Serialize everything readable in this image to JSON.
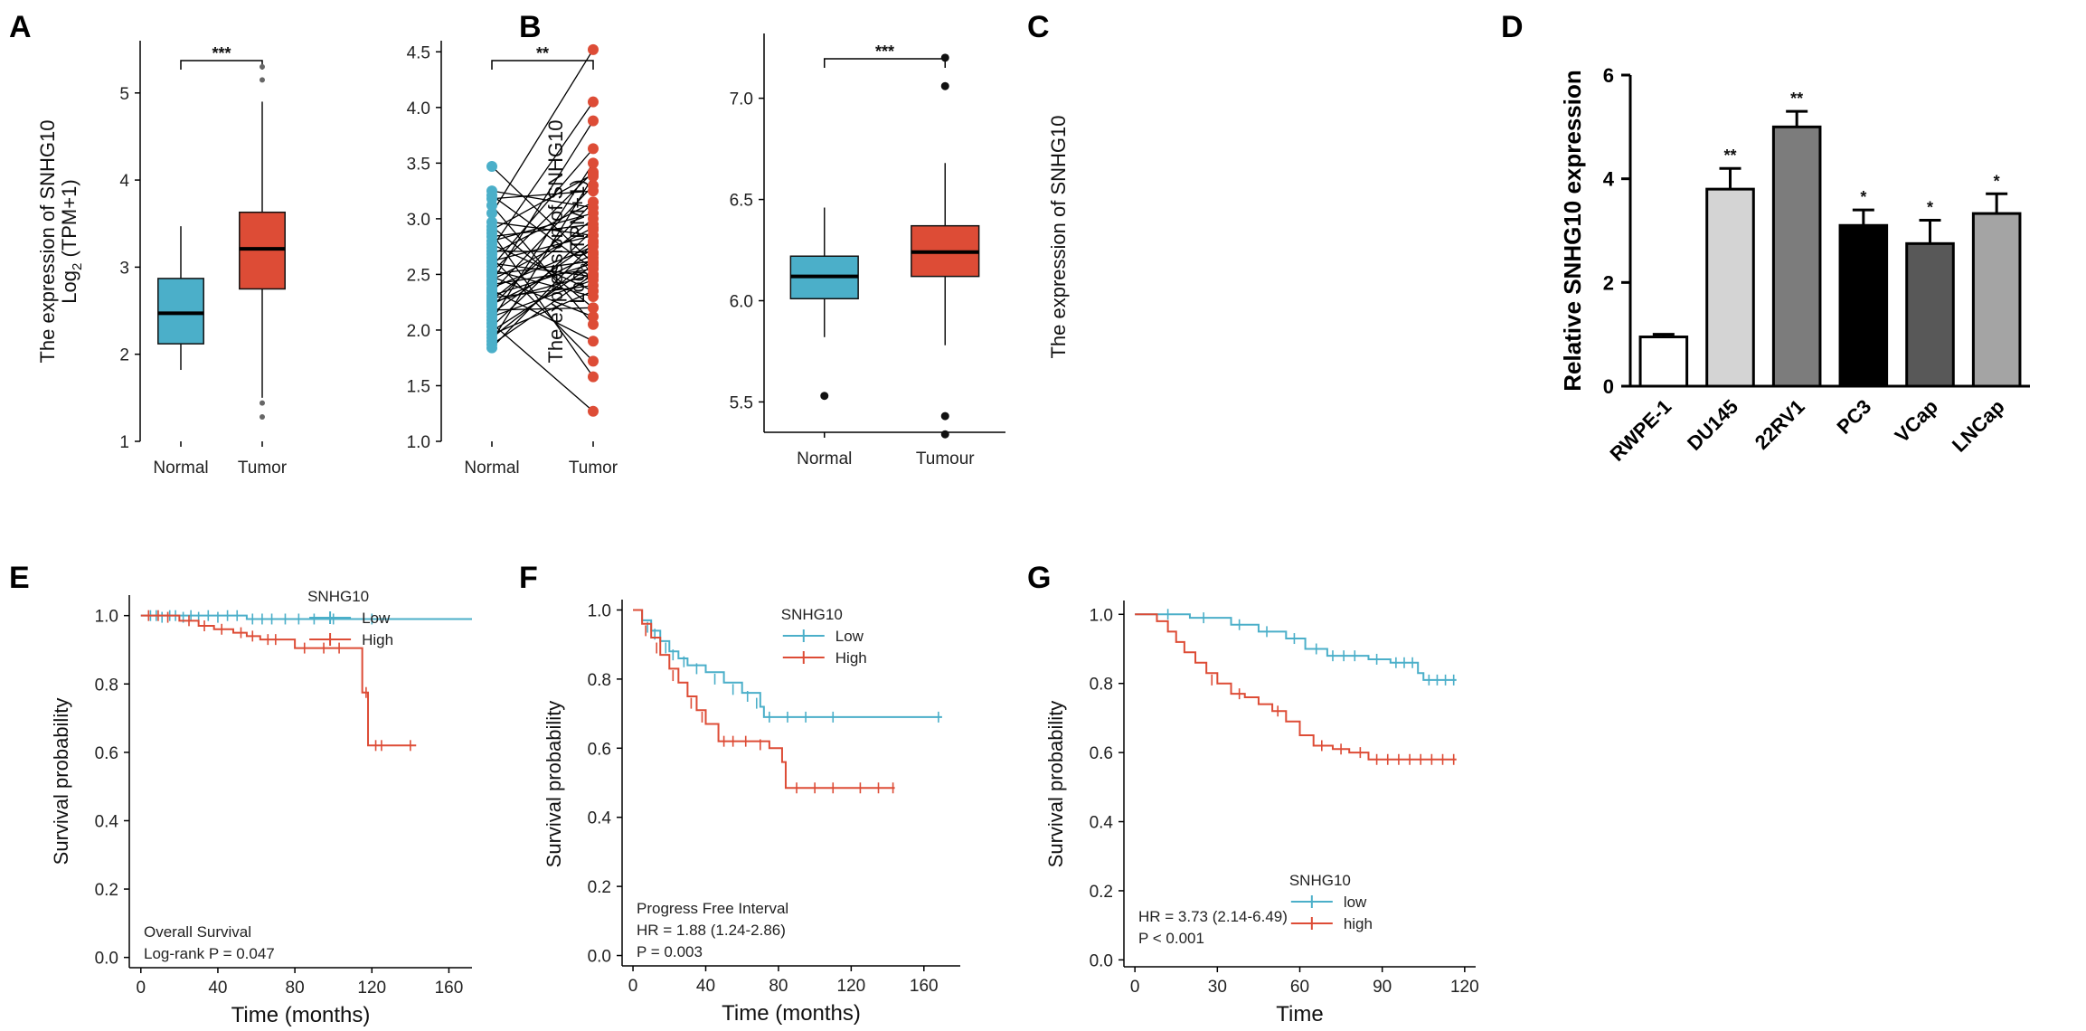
{
  "colors": {
    "normal": "#4bafc9",
    "tumor": "#dd4c36",
    "black": "#000000",
    "gray": "#666666"
  },
  "chart_data": [
    {
      "id": "A",
      "letter": "A",
      "type": "box",
      "ylabel_line1": "The expression of SNHG10",
      "ylabel_line2_pre": "Log",
      "ylabel_line2_sub": "2",
      "ylabel_line2_post": " (TPM+1)",
      "ylim": [
        1,
        5.6
      ],
      "yticks": [
        "1",
        "2",
        "3",
        "4",
        "5"
      ],
      "significance": "***",
      "groups": [
        {
          "name": "Normal",
          "color": "#4bafc9",
          "min": 1.82,
          "q1": 2.12,
          "median": 2.47,
          "q3": 2.87,
          "max": 3.47,
          "outliers": []
        },
        {
          "name": "Tumor",
          "color": "#dd4c36",
          "min": 1.5,
          "q1": 2.75,
          "median": 3.21,
          "q3": 3.63,
          "max": 4.9,
          "outliers": [
            1.28,
            1.44,
            5.15,
            5.3
          ]
        }
      ]
    },
    {
      "id": "B",
      "letter": "B",
      "type": "paired",
      "ylabel_line1": "The expression of SNHG10",
      "ylabel_line2_pre": "Log",
      "ylabel_line2_sub": "2",
      "ylabel_line2_post": " (TPM+1)",
      "ylim": [
        1.0,
        4.6
      ],
      "yticks": [
        "1.0",
        "1.5",
        "2.0",
        "2.5",
        "3.0",
        "3.5",
        "4.0",
        "4.5"
      ],
      "significance": "**",
      "groups": [
        {
          "name": "Normal",
          "color": "#4bafc9"
        },
        {
          "name": "Tumor",
          "color": "#dd4c36"
        }
      ],
      "pairs": [
        [
          3.47,
          2.6
        ],
        [
          3.25,
          3.1
        ],
        [
          3.21,
          2.55
        ],
        [
          3.18,
          3.25
        ],
        [
          3.12,
          2.05
        ],
        [
          3.05,
          4.52
        ],
        [
          2.97,
          2.85
        ],
        [
          2.93,
          2.2
        ],
        [
          2.9,
          3.4
        ],
        [
          2.87,
          1.58
        ],
        [
          2.84,
          2.95
        ],
        [
          2.8,
          3.05
        ],
        [
          2.77,
          2.35
        ],
        [
          2.74,
          4.05
        ],
        [
          2.71,
          2.7
        ],
        [
          2.68,
          3.15
        ],
        [
          2.65,
          1.72
        ],
        [
          2.62,
          2.85
        ],
        [
          2.6,
          2.48
        ],
        [
          2.57,
          3.63
        ],
        [
          2.54,
          2.3
        ],
        [
          2.52,
          3.42
        ],
        [
          2.5,
          2.62
        ],
        [
          2.48,
          2.12
        ],
        [
          2.45,
          2.92
        ],
        [
          2.43,
          3.88
        ],
        [
          2.41,
          2.55
        ],
        [
          2.38,
          2.75
        ],
        [
          2.36,
          1.9
        ],
        [
          2.34,
          3.3
        ],
        [
          2.31,
          2.6
        ],
        [
          2.29,
          2.4
        ],
        [
          2.27,
          3.0
        ],
        [
          2.25,
          2.5
        ],
        [
          2.23,
          2.68
        ],
        [
          2.21,
          3.15
        ],
        [
          2.18,
          2.2
        ],
        [
          2.15,
          2.8
        ],
        [
          2.12,
          2.45
        ],
        [
          2.09,
          3.5
        ],
        [
          2.06,
          1.27
        ],
        [
          2.03,
          2.9
        ],
        [
          1.99,
          2.58
        ],
        [
          1.96,
          2.35
        ],
        [
          1.93,
          2.65
        ],
        [
          1.9,
          3.38
        ],
        [
          1.87,
          2.5
        ],
        [
          1.84,
          2.78
        ]
      ]
    },
    {
      "id": "C",
      "letter": "C",
      "type": "box",
      "ylabel_line1": "The expression of SNHG10",
      "ylim": [
        5.35,
        7.32
      ],
      "yticks": [
        "5.5",
        "6.0",
        "6.5",
        "7.0"
      ],
      "significance": "***",
      "groups": [
        {
          "name": "Normal",
          "color": "#4bafc9",
          "min": 5.82,
          "q1": 6.01,
          "median": 6.12,
          "q3": 6.22,
          "max": 6.46,
          "outliers": [
            5.53
          ]
        },
        {
          "name": "Tumour",
          "color": "#dd4c36",
          "min": 5.78,
          "q1": 6.12,
          "median": 6.24,
          "q3": 6.37,
          "max": 6.68,
          "outliers": [
            5.34,
            5.43,
            7.06,
            7.2
          ]
        }
      ]
    },
    {
      "id": "D",
      "letter": "D",
      "type": "bar",
      "ylabel": "Relative  SNHG10 expression",
      "ylim": [
        0,
        6
      ],
      "yticks": [
        "0",
        "2",
        "4",
        "6"
      ],
      "categories": [
        "RWPE-1",
        "DU145",
        "22RV1",
        "PC3",
        "VCap",
        "LNCap"
      ],
      "values": [
        0.95,
        3.8,
        5.0,
        3.1,
        2.75,
        3.33
      ],
      "errors": [
        0.05,
        0.4,
        0.3,
        0.3,
        0.45,
        0.38
      ],
      "fills": [
        "#ffffff",
        "#d4d4d4",
        "#7c7c7c",
        "#000000",
        "#585858",
        "#a4a4a4"
      ],
      "significance": [
        "",
        "**",
        "**",
        "*",
        "*",
        "*"
      ]
    },
    {
      "id": "E",
      "letter": "E",
      "type": "km",
      "xlabel": "Time (months)",
      "ylabel": "Survival probability",
      "xlim": [
        -6,
        172
      ],
      "xticks": [
        "0",
        "40",
        "80",
        "120",
        "160"
      ],
      "ylim": [
        -0.03,
        1.06
      ],
      "yticks": [
        "0.0",
        "0.2",
        "0.4",
        "0.6",
        "0.8",
        "1.0"
      ],
      "legend_title": "SNHG10",
      "legend_position": "top-right",
      "annotations": [
        "Overall Survival",
        "Log-rank P = 0.047"
      ],
      "series": [
        {
          "name": "Low",
          "color": "#4bafc9",
          "steps": [
            [
              0,
              1.0
            ],
            [
              55,
              0.99
            ],
            [
              172,
              0.99
            ]
          ],
          "censor": [
            [
              5,
              1.0
            ],
            [
              8,
              1.0
            ],
            [
              11,
              0.995
            ],
            [
              15,
              1.0
            ],
            [
              18,
              1.0
            ],
            [
              22,
              0.995
            ],
            [
              26,
              1.0
            ],
            [
              30,
              0.995
            ],
            [
              35,
              1.0
            ],
            [
              40,
              0.995
            ],
            [
              45,
              1.0
            ],
            [
              50,
              1.0
            ],
            [
              58,
              0.99
            ],
            [
              63,
              0.99
            ],
            [
              68,
              0.99
            ],
            [
              75,
              0.99
            ],
            [
              82,
              0.99
            ],
            [
              90,
              0.99
            ],
            [
              100,
              0.99
            ],
            [
              120,
              0.99
            ]
          ]
        },
        {
          "name": "High",
          "color": "#dd4c36",
          "steps": [
            [
              0,
              1.0
            ],
            [
              20,
              0.985
            ],
            [
              30,
              0.97
            ],
            [
              38,
              0.96
            ],
            [
              48,
              0.95
            ],
            [
              55,
              0.94
            ],
            [
              62,
              0.93
            ],
            [
              80,
              0.905
            ],
            [
              115,
              0.775
            ],
            [
              118,
              0.62
            ],
            [
              143,
              0.62
            ]
          ],
          "censor": [
            [
              4,
              1.0
            ],
            [
              9,
              1.0
            ],
            [
              14,
              0.995
            ],
            [
              25,
              0.985
            ],
            [
              33,
              0.97
            ],
            [
              42,
              0.96
            ],
            [
              52,
              0.95
            ],
            [
              58,
              0.94
            ],
            [
              66,
              0.93
            ],
            [
              70,
              0.93
            ],
            [
              85,
              0.905
            ],
            [
              95,
              0.905
            ],
            [
              103,
              0.905
            ],
            [
              117,
              0.775
            ],
            [
              122,
              0.62
            ],
            [
              125,
              0.62
            ],
            [
              140,
              0.62
            ]
          ]
        }
      ]
    },
    {
      "id": "F",
      "letter": "F",
      "type": "km",
      "xlabel": "Time (months)",
      "ylabel": "Survival probability",
      "xlim": [
        -6,
        180
      ],
      "xticks": [
        "0",
        "40",
        "80",
        "120",
        "160"
      ],
      "ylim": [
        -0.03,
        1.03
      ],
      "yticks": [
        "0.0",
        "0.2",
        "0.4",
        "0.6",
        "0.8",
        "1.0"
      ],
      "legend_title": "SNHG10",
      "legend_position": "top-right",
      "annotations": [
        "Progress Free Interval",
        "HR = 1.88 (1.24-2.86)",
        "P = 0.003"
      ],
      "series": [
        {
          "name": "Low",
          "color": "#4bafc9",
          "steps": [
            [
              0,
              1.0
            ],
            [
              5,
              0.97
            ],
            [
              10,
              0.94
            ],
            [
              15,
              0.91
            ],
            [
              20,
              0.88
            ],
            [
              25,
              0.86
            ],
            [
              30,
              0.84
            ],
            [
              40,
              0.82
            ],
            [
              50,
              0.79
            ],
            [
              60,
              0.76
            ],
            [
              70,
              0.72
            ],
            [
              72,
              0.69
            ],
            [
              170,
              0.69
            ]
          ],
          "censor": [
            [
              8,
              0.95
            ],
            [
              12,
              0.93
            ],
            [
              18,
              0.89
            ],
            [
              22,
              0.87
            ],
            [
              28,
              0.85
            ],
            [
              35,
              0.83
            ],
            [
              45,
              0.8
            ],
            [
              55,
              0.77
            ],
            [
              63,
              0.75
            ],
            [
              68,
              0.73
            ],
            [
              75,
              0.69
            ],
            [
              85,
              0.69
            ],
            [
              95,
              0.69
            ],
            [
              110,
              0.69
            ],
            [
              168,
              0.69
            ]
          ]
        },
        {
          "name": "High",
          "color": "#dd4c36",
          "steps": [
            [
              0,
              1.0
            ],
            [
              5,
              0.96
            ],
            [
              10,
              0.92
            ],
            [
              15,
              0.87
            ],
            [
              20,
              0.83
            ],
            [
              25,
              0.79
            ],
            [
              30,
              0.75
            ],
            [
              35,
              0.71
            ],
            [
              40,
              0.67
            ],
            [
              47,
              0.62
            ],
            [
              75,
              0.6
            ],
            [
              82,
              0.56
            ],
            [
              84,
              0.485
            ],
            [
              144,
              0.485
            ]
          ],
          "censor": [
            [
              7,
              0.94
            ],
            [
              13,
              0.89
            ],
            [
              22,
              0.81
            ],
            [
              32,
              0.73
            ],
            [
              38,
              0.69
            ],
            [
              50,
              0.62
            ],
            [
              55,
              0.62
            ],
            [
              62,
              0.62
            ],
            [
              70,
              0.61
            ],
            [
              90,
              0.485
            ],
            [
              100,
              0.485
            ],
            [
              110,
              0.485
            ],
            [
              125,
              0.485
            ],
            [
              135,
              0.485
            ],
            [
              143,
              0.485
            ]
          ]
        }
      ]
    },
    {
      "id": "G",
      "letter": "G",
      "type": "km",
      "xlabel": "Time",
      "ylabel": "Survival probability",
      "xlim": [
        -4,
        124
      ],
      "xticks": [
        "0",
        "30",
        "60",
        "90",
        "120"
      ],
      "ylim": [
        -0.02,
        1.04
      ],
      "yticks": [
        "0.0",
        "0.2",
        "0.4",
        "0.6",
        "0.8",
        "1.0"
      ],
      "legend_title": "SNHG10",
      "legend_position": "bottom-right",
      "annotations": [
        "HR = 3.73 (2.14-6.49)",
        "P < 0.001"
      ],
      "series": [
        {
          "name": "low",
          "color": "#4bafc9",
          "steps": [
            [
              0,
              1.0
            ],
            [
              20,
              0.99
            ],
            [
              35,
              0.97
            ],
            [
              45,
              0.95
            ],
            [
              55,
              0.93
            ],
            [
              62,
              0.9
            ],
            [
              70,
              0.88
            ],
            [
              85,
              0.87
            ],
            [
              93,
              0.86
            ],
            [
              103,
              0.83
            ],
            [
              105,
              0.81
            ],
            [
              117,
              0.81
            ]
          ],
          "censor": [
            [
              12,
              1.0
            ],
            [
              25,
              0.99
            ],
            [
              38,
              0.97
            ],
            [
              48,
              0.95
            ],
            [
              58,
              0.93
            ],
            [
              66,
              0.9
            ],
            [
              72,
              0.88
            ],
            [
              76,
              0.88
            ],
            [
              80,
              0.88
            ],
            [
              88,
              0.87
            ],
            [
              95,
              0.86
            ],
            [
              98,
              0.86
            ],
            [
              101,
              0.86
            ],
            [
              107,
              0.81
            ],
            [
              110,
              0.81
            ],
            [
              113,
              0.81
            ],
            [
              116,
              0.81
            ]
          ]
        },
        {
          "name": "high",
          "color": "#dd4c36",
          "steps": [
            [
              0,
              1.0
            ],
            [
              8,
              0.98
            ],
            [
              12,
              0.95
            ],
            [
              15,
              0.92
            ],
            [
              18,
              0.89
            ],
            [
              22,
              0.86
            ],
            [
              26,
              0.83
            ],
            [
              30,
              0.8
            ],
            [
              35,
              0.77
            ],
            [
              40,
              0.76
            ],
            [
              45,
              0.74
            ],
            [
              50,
              0.72
            ],
            [
              55,
              0.69
            ],
            [
              60,
              0.65
            ],
            [
              65,
              0.62
            ],
            [
              72,
              0.61
            ],
            [
              78,
              0.6
            ],
            [
              85,
              0.58
            ],
            [
              117,
              0.58
            ]
          ],
          "censor": [
            [
              28,
              0.81
            ],
            [
              38,
              0.77
            ],
            [
              52,
              0.72
            ],
            [
              68,
              0.62
            ],
            [
              75,
              0.61
            ],
            [
              82,
              0.6
            ],
            [
              88,
              0.58
            ],
            [
              92,
              0.58
            ],
            [
              96,
              0.58
            ],
            [
              100,
              0.58
            ],
            [
              104,
              0.58
            ],
            [
              108,
              0.58
            ],
            [
              112,
              0.58
            ],
            [
              116,
              0.58
            ]
          ]
        }
      ]
    }
  ]
}
